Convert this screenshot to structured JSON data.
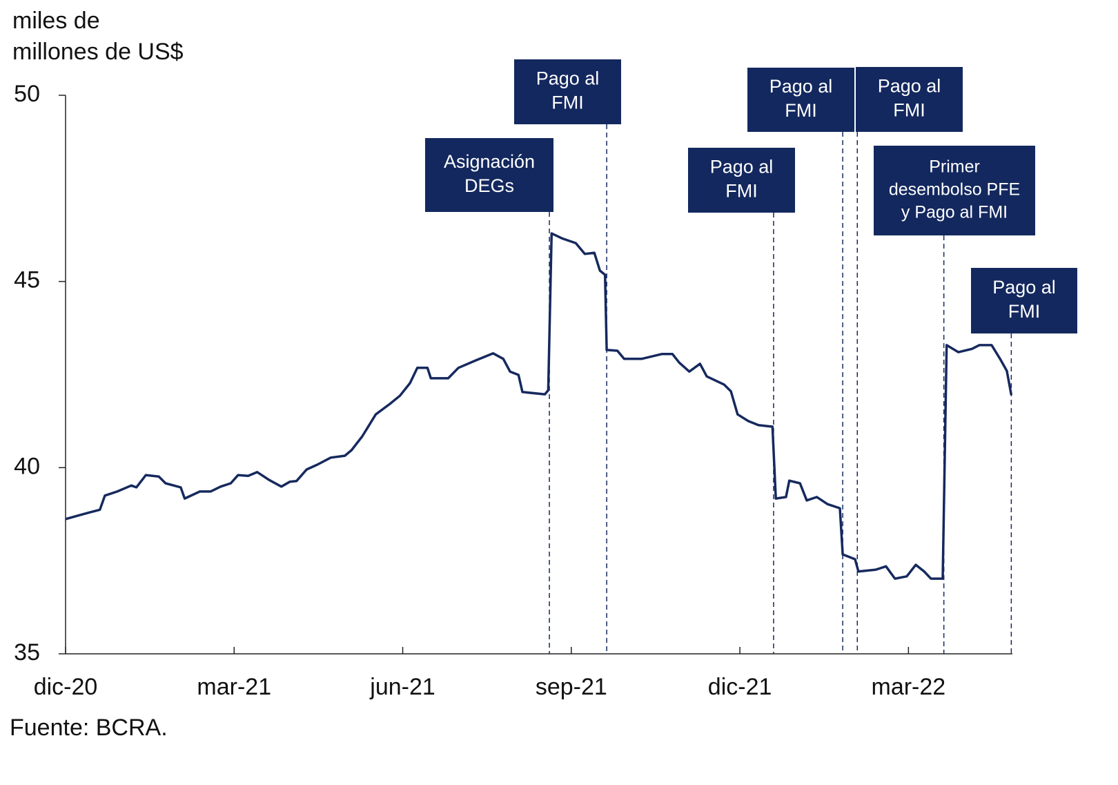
{
  "chart_data": {
    "type": "line",
    "y_label_lines": [
      "miles de",
      "millones de US$"
    ],
    "source": "Fuente: BCRA.",
    "xlim": [
      0,
      16.85
    ],
    "ylim": [
      35,
      50
    ],
    "yticks": [
      35,
      40,
      45,
      50
    ],
    "xticks": [
      {
        "value": 0,
        "label": "dic-20"
      },
      {
        "value": 3,
        "label": "mar-21"
      },
      {
        "value": 6,
        "label": "jun-21"
      },
      {
        "value": 9,
        "label": "sep-21"
      },
      {
        "value": 12,
        "label": "dic-21"
      },
      {
        "value": 15,
        "label": "mar-22"
      }
    ],
    "color": "#16295e",
    "x": [
      0,
      0.31,
      0.61,
      0.7,
      0.92,
      1.17,
      1.26,
      1.43,
      1.66,
      1.78,
      2.05,
      2.12,
      2.39,
      2.58,
      2.76,
      2.94,
      3.07,
      3.25,
      3.41,
      3.62,
      3.84,
      3.99,
      4.11,
      4.29,
      4.48,
      4.72,
      4.97,
      5.09,
      5.28,
      5.52,
      5.77,
      5.95,
      6.13,
      6.26,
      6.44,
      6.5,
      6.81,
      6.99,
      7.3,
      7.61,
      7.79,
      7.91,
      8.06,
      8.13,
      8.53,
      8.59,
      8.65,
      8.83,
      9.08,
      9.24,
      9.41,
      9.51,
      9.6,
      9.63,
      9.82,
      9.94,
      10.25,
      10.61,
      10.8,
      10.92,
      11.1,
      11.29,
      11.41,
      11.72,
      11.84,
      11.96,
      12.15,
      12.33,
      12.58,
      12.64,
      12.82,
      12.88,
      13.07,
      13.19,
      13.37,
      13.56,
      13.78,
      13.83,
      14.05,
      14.11,
      14.42,
      14.6,
      14.76,
      14.97,
      15.13,
      15.28,
      15.4,
      15.61,
      15.68,
      15.89,
      16.13,
      16.26,
      16.48,
      16.63,
      16.75,
      16.83
    ],
    "values": [
      38.62,
      38.75,
      38.87,
      39.25,
      39.36,
      39.52,
      39.47,
      39.8,
      39.76,
      39.58,
      39.47,
      39.17,
      39.36,
      39.36,
      39.49,
      39.58,
      39.8,
      39.78,
      39.88,
      39.67,
      39.49,
      39.62,
      39.64,
      39.95,
      40.08,
      40.27,
      40.32,
      40.47,
      40.84,
      41.43,
      41.71,
      41.93,
      42.27,
      42.68,
      42.68,
      42.4,
      42.4,
      42.68,
      42.88,
      43.07,
      42.92,
      42.58,
      42.49,
      42.03,
      41.97,
      42.08,
      46.29,
      46.16,
      46.03,
      45.74,
      45.77,
      45.29,
      45.18,
      43.16,
      43.14,
      42.92,
      42.92,
      43.05,
      43.05,
      42.82,
      42.58,
      42.79,
      42.45,
      42.23,
      42.05,
      41.43,
      41.25,
      41.14,
      41.1,
      39.17,
      39.21,
      39.65,
      39.58,
      39.12,
      39.21,
      39.02,
      38.91,
      37.67,
      37.54,
      37.21,
      37.26,
      37.35,
      37.02,
      37.08,
      37.39,
      37.21,
      37.02,
      37.02,
      43.29,
      43.1,
      43.19,
      43.29,
      43.29,
      42.92,
      42.6,
      41.95
    ],
    "annotations": [
      {
        "x": 8.61,
        "lines": [
          "Asignación",
          "DEGs"
        ]
      },
      {
        "x": 9.63,
        "lines": [
          "Pago al",
          "FMI"
        ]
      },
      {
        "x": 12.6,
        "lines": [
          "Pago al",
          "FMI"
        ]
      },
      {
        "x": 13.83,
        "lines": [
          "Pago al",
          "FMI"
        ]
      },
      {
        "x": 14.09,
        "lines": [
          "Pago al",
          "FMI"
        ]
      },
      {
        "x": 15.63,
        "lines": [
          "Primer",
          "desembolso PFE",
          "y Pago al FMI"
        ]
      },
      {
        "x": 16.83,
        "lines": [
          "Pago al",
          "FMI"
        ]
      }
    ],
    "annotation_color": "#13285e"
  }
}
